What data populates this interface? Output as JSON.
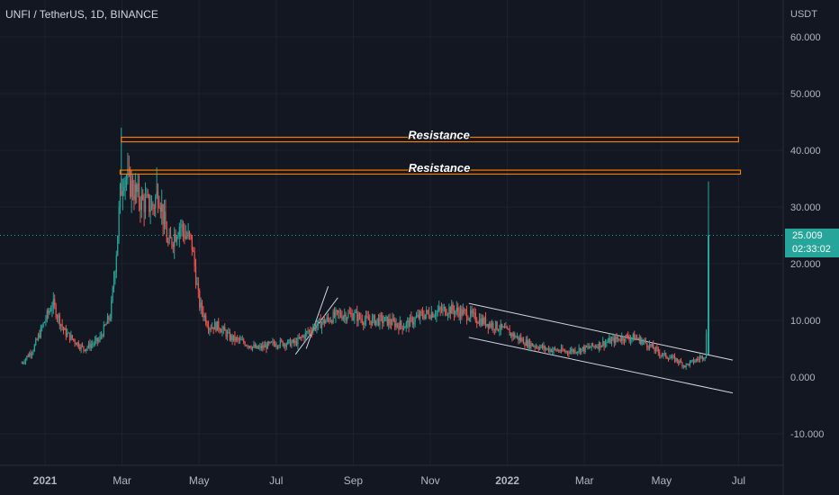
{
  "header": {
    "title": "UNFI / TetherUS, 1D, BINANCE"
  },
  "price_axis": {
    "currency": "USDT"
  },
  "last_price": {
    "value": "25.009",
    "countdown": "02:33:02",
    "color": "#26a69a"
  },
  "colors": {
    "up": "#26a69a",
    "down": "#ef5350",
    "resistance": "#f57c00",
    "channel": "#d1d4dc",
    "background": "#131722"
  },
  "chart_data": {
    "type": "candlestick",
    "symbol": "UNFI / TetherUS",
    "interval": "1D",
    "exchange": "BINANCE",
    "yticks": [
      "60.000",
      "50.000",
      "40.000",
      "30.000",
      "20.000",
      "10.000",
      "0.000",
      "-10.000"
    ],
    "ylim": [
      -15,
      64
    ],
    "xticks": [
      "2021",
      "Mar",
      "May",
      "Jul",
      "Sep",
      "Nov",
      "2022",
      "Mar",
      "May",
      "Jul"
    ],
    "xtick_months": [
      0,
      2,
      4,
      6,
      8,
      10,
      12,
      14,
      16,
      18
    ],
    "last_value": 25.009,
    "price_path": [
      [
        -0.6,
        2.5
      ],
      [
        -0.3,
        5
      ],
      [
        0.0,
        10
      ],
      [
        0.2,
        13
      ],
      [
        0.5,
        8
      ],
      [
        1.0,
        5
      ],
      [
        1.4,
        6.5
      ],
      [
        1.7,
        11
      ],
      [
        1.85,
        22
      ],
      [
        1.95,
        32
      ],
      [
        2.05,
        36
      ],
      [
        2.2,
        34
      ],
      [
        2.5,
        31
      ],
      [
        2.8,
        30
      ],
      [
        2.95,
        33
      ],
      [
        3.2,
        23
      ],
      [
        3.5,
        27
      ],
      [
        3.65,
        25
      ],
      [
        3.8,
        24
      ],
      [
        4.0,
        13
      ],
      [
        4.25,
        9
      ],
      [
        4.5,
        9
      ],
      [
        4.8,
        7
      ],
      [
        5.2,
        6
      ],
      [
        5.5,
        5
      ],
      [
        6.0,
        6
      ],
      [
        6.5,
        6
      ],
      [
        7.0,
        9
      ],
      [
        7.6,
        11
      ],
      [
        8.0,
        11
      ],
      [
        8.3,
        10
      ],
      [
        8.8,
        10
      ],
      [
        9.3,
        9
      ],
      [
        9.8,
        11
      ],
      [
        10.5,
        12
      ],
      [
        11.0,
        11
      ],
      [
        11.3,
        10
      ],
      [
        11.7,
        9
      ],
      [
        12.0,
        8
      ],
      [
        12.5,
        6
      ],
      [
        13.0,
        5
      ],
      [
        13.5,
        4.5
      ],
      [
        14.0,
        5
      ],
      [
        14.5,
        6
      ],
      [
        15.0,
        7
      ],
      [
        15.3,
        7
      ],
      [
        15.6,
        6
      ],
      [
        16.0,
        4
      ],
      [
        16.4,
        3
      ],
      [
        16.6,
        2
      ],
      [
        16.9,
        3
      ],
      [
        17.15,
        4
      ],
      [
        17.22,
        25
      ]
    ],
    "spikes": [
      {
        "month": 1.98,
        "high": 44
      },
      {
        "month": 2.9,
        "high": 37
      },
      {
        "month": 17.22,
        "high": 34.5
      }
    ],
    "annotations": [
      {
        "type": "resistance",
        "label": "Resistance",
        "y_low": 41.5,
        "y_high": 42.3,
        "x_start": 1.98,
        "x_end": 18.0
      },
      {
        "type": "resistance",
        "label": "Resistance",
        "y_low": 35.8,
        "y_high": 36.5,
        "x_start": 1.95,
        "x_end": 18.05
      },
      {
        "type": "rising_channel",
        "upper": [
          [
            6.78,
            5
          ],
          [
            7.35,
            16
          ]
        ],
        "lower": [
          [
            6.5,
            4
          ],
          [
            7.6,
            14
          ]
        ]
      },
      {
        "type": "descending_channel",
        "upper": [
          [
            11.0,
            13
          ],
          [
            17.85,
            3
          ]
        ],
        "lower": [
          [
            11.0,
            7
          ],
          [
            17.85,
            -2.8
          ]
        ]
      }
    ]
  }
}
